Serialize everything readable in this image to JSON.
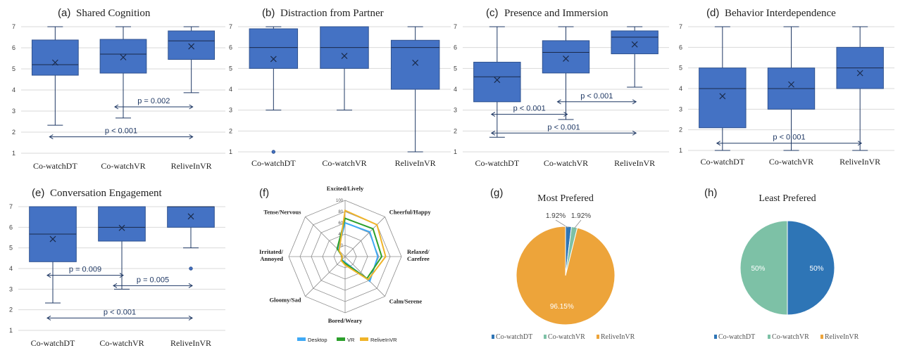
{
  "colors": {
    "box": "#4472C4",
    "box_edge": "#2F528F",
    "line": "#1F3864",
    "grid": "#D9D9D9",
    "annot": "#1F3864"
  },
  "chart_data": [
    {
      "id": "a",
      "type": "box",
      "letter": "(a)",
      "title": "Shared Cognition",
      "ylim": [
        1,
        7
      ],
      "yticks": [
        "1",
        "2",
        "3",
        "4",
        "5",
        "6",
        "7"
      ],
      "categories": [
        "Co-watchDT",
        "Co-watchVR",
        "ReliveInVR"
      ],
      "boxes": [
        {
          "whisker_low": 2.33,
          "q1": 4.7,
          "median": 5.2,
          "q3": 6.37,
          "whisker_high": 7,
          "mean": 5.3,
          "outliers": []
        },
        {
          "whisker_low": 2.67,
          "q1": 4.8,
          "median": 5.7,
          "q3": 6.4,
          "whisker_high": 7,
          "mean": 5.55,
          "outliers": []
        },
        {
          "whisker_low": 3.87,
          "q1": 5.45,
          "median": 6.33,
          "q3": 6.8,
          "whisker_high": 7,
          "mean": 6.07,
          "outliers": []
        }
      ],
      "annotations": [
        {
          "text": "p = 0.002",
          "from": 1,
          "to": 2,
          "y": 3.2
        },
        {
          "text": "p < 0.001",
          "from": 0,
          "to": 2,
          "y": 1.78
        }
      ]
    },
    {
      "id": "b",
      "type": "box",
      "letter": "(b)",
      "title": "Distraction from Partner",
      "ylim": [
        1,
        7
      ],
      "yticks": [
        "1",
        "2",
        "3",
        "4",
        "5",
        "6",
        "7"
      ],
      "categories": [
        "Co-watchDT",
        "Co-watchVR",
        "ReliveInVR"
      ],
      "boxes": [
        {
          "whisker_low": 3,
          "q1": 5,
          "median": 6,
          "q3": 6.9,
          "whisker_high": 7,
          "mean": 5.45,
          "outliers": [
            1
          ]
        },
        {
          "whisker_low": 3,
          "q1": 5,
          "median": 6,
          "q3": 7,
          "whisker_high": 7,
          "mean": 5.6,
          "outliers": []
        },
        {
          "whisker_low": 1,
          "q1": 4,
          "median": 6,
          "q3": 6.35,
          "whisker_high": 7,
          "mean": 5.27,
          "outliers": []
        }
      ],
      "annotations": []
    },
    {
      "id": "c",
      "type": "box",
      "letter": "(c)",
      "title": "Presence and Immersion",
      "ylim": [
        1,
        7
      ],
      "yticks": [
        "1",
        "2",
        "3",
        "4",
        "5",
        "6",
        "7"
      ],
      "categories": [
        "Co-watchDT",
        "Co-watchVR",
        "ReliveInVR"
      ],
      "boxes": [
        {
          "whisker_low": 1.7,
          "q1": 3.4,
          "median": 4.6,
          "q3": 5.3,
          "whisker_high": 7,
          "mean": 4.45,
          "outliers": []
        },
        {
          "whisker_low": 2.55,
          "q1": 4.78,
          "median": 5.77,
          "q3": 6.33,
          "whisker_high": 7,
          "mean": 5.47,
          "outliers": []
        },
        {
          "whisker_low": 4.1,
          "q1": 5.7,
          "median": 6.5,
          "q3": 6.8,
          "whisker_high": 7,
          "mean": 6.15,
          "outliers": []
        }
      ],
      "annotations": [
        {
          "text": "p < 0.001",
          "from": 0,
          "to": 1,
          "y": 2.8
        },
        {
          "text": "p < 0.001",
          "from": 1,
          "to": 2,
          "y": 3.4
        },
        {
          "text": "p < 0.001",
          "from": 0,
          "to": 2,
          "y": 1.9
        }
      ]
    },
    {
      "id": "d",
      "type": "box",
      "letter": "(d)",
      "title": "Behavior Interdependence",
      "ylim": [
        1,
        7
      ],
      "yticks": [
        "1",
        "2",
        "3",
        "4",
        "5",
        "6",
        "7"
      ],
      "categories": [
        "Co-watchDT",
        "Co-watchVR",
        "ReliveInVR"
      ],
      "boxes": [
        {
          "whisker_low": 1,
          "q1": 2.1,
          "median": 4,
          "q3": 5,
          "whisker_high": 7,
          "mean": 3.63,
          "outliers": []
        },
        {
          "whisker_low": 1,
          "q1": 3,
          "median": 4,
          "q3": 5,
          "whisker_high": 7,
          "mean": 4.2,
          "outliers": []
        },
        {
          "whisker_low": 1,
          "q1": 4,
          "median": 5,
          "q3": 6,
          "whisker_high": 7,
          "mean": 4.75,
          "outliers": []
        }
      ],
      "annotations": [
        {
          "text": "p < 0.001",
          "from": 0,
          "to": 2,
          "y": 1.35
        }
      ]
    },
    {
      "id": "e",
      "type": "box",
      "letter": "(e)",
      "title": "Conversation Engagement",
      "ylim": [
        1,
        7
      ],
      "yticks": [
        "1",
        "2",
        "3",
        "4",
        "5",
        "6",
        "7"
      ],
      "categories": [
        "Co-watchDT",
        "Co-watchVR",
        "ReliveInVR"
      ],
      "boxes": [
        {
          "whisker_low": 2.33,
          "q1": 4.33,
          "median": 5.67,
          "q3": 7,
          "whisker_high": 7,
          "mean": 5.43,
          "outliers": []
        },
        {
          "whisker_low": 3,
          "q1": 5.33,
          "median": 6,
          "q3": 7,
          "whisker_high": 7,
          "mean": 5.97,
          "outliers": []
        },
        {
          "whisker_low": 5,
          "q1": 6,
          "median": 7,
          "q3": 7,
          "whisker_high": 7,
          "mean": 6.53,
          "outliers": [
            4
          ]
        }
      ],
      "annotations": [
        {
          "text": "p = 0.009",
          "from": 0,
          "to": 1,
          "y": 3.67
        },
        {
          "text": "p = 0.005",
          "from": 1,
          "to": 2,
          "y": 3.17
        },
        {
          "text": "p < 0.001",
          "from": 0,
          "to": 2,
          "y": 1.6
        }
      ]
    },
    {
      "id": "f",
      "type": "radar",
      "letter": "(f)",
      "axes": [
        "Excited/Lively",
        "Cheerful/Happy",
        "Relaxed/\nCarefree",
        "Calm/Serene",
        "Bored/Weary",
        "Gloomy/Sad",
        "Irritated/\nAnnoyed",
        "Tense/Nervous"
      ],
      "rlim": [
        0,
        100
      ],
      "rticks": [
        "0",
        "20",
        "40",
        "60",
        "80",
        "100"
      ],
      "series": [
        {
          "name": "Desktop",
          "color": "#3FA9F5",
          "values": [
            60,
            62,
            58,
            62,
            10,
            8,
            5,
            18
          ]
        },
        {
          "name": "VR",
          "color": "#2CA02C",
          "values": [
            68,
            70,
            65,
            55,
            12,
            9,
            5,
            20
          ]
        },
        {
          "name": "ReliveInVR",
          "color": "#F0B429",
          "values": [
            82,
            80,
            72,
            58,
            15,
            10,
            5,
            15
          ]
        }
      ]
    },
    {
      "id": "g",
      "type": "pie",
      "letter": "(g)",
      "title": "Most Prefered",
      "slices": [
        {
          "name": "Co-watchDT",
          "value": 1.92,
          "label": "1.92%",
          "color": "#2E75B6"
        },
        {
          "name": "Co-watchVR",
          "value": 1.92,
          "label": "1.92%",
          "color": "#7DC1A6"
        },
        {
          "name": "ReliveInVR",
          "value": 96.15,
          "label": "96.15%",
          "color": "#EDA43A"
        }
      ]
    },
    {
      "id": "h",
      "type": "pie",
      "letter": "(h)",
      "title": "Least Prefered",
      "slices": [
        {
          "name": "Co-watchDT",
          "value": 50,
          "label": "50%",
          "color": "#2E75B6"
        },
        {
          "name": "Co-watchVR",
          "value": 50,
          "label": "50%",
          "color": "#7DC1A6"
        },
        {
          "name": "ReliveInVR",
          "value": 0,
          "label": "",
          "color": "#EDA43A"
        }
      ]
    }
  ]
}
